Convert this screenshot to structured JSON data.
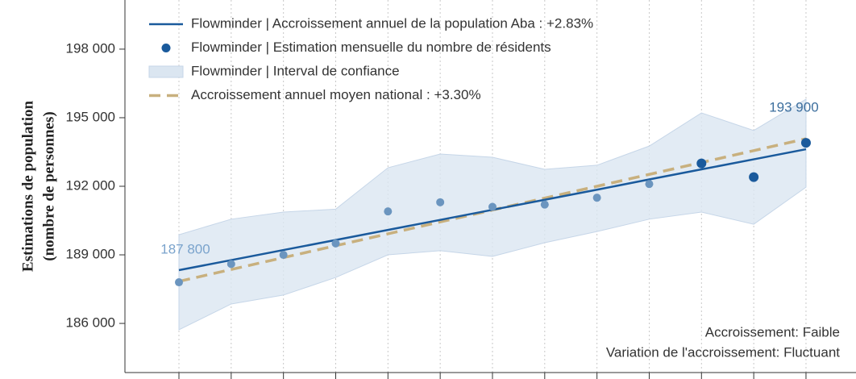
{
  "chart_data": {
    "type": "line",
    "ylabel": [
      "Estimations de population",
      "(nombre de personnes)"
    ],
    "categories": [
      null,
      null,
      null,
      null,
      null,
      null,
      null,
      null,
      null,
      null,
      null,
      null,
      null
    ],
    "ylim": [
      183850,
      200150
    ],
    "yticks": [
      {
        "value": 186000,
        "label": "186 000"
      },
      {
        "value": 189000,
        "label": "189 000"
      },
      {
        "value": 192000,
        "label": "192 000"
      },
      {
        "value": 195000,
        "label": "195 000"
      },
      {
        "value": 198000,
        "label": "198 000"
      }
    ],
    "grid": "x",
    "legend": "upper left",
    "series": [
      {
        "name": "Flowminder | Accroissement annuel de la population Aba : +2.83%",
        "kind": "line",
        "color": "#1a5a9c",
        "values": [
          188330,
          188770,
          189210,
          189650,
          190090,
          190530,
          190970,
          191410,
          191850,
          192300,
          192740,
          193180,
          193620
        ]
      },
      {
        "name": "Flowminder | Estimation mensuelle du nombre de résidents",
        "kind": "scatter",
        "color": "#1a5a9c",
        "values": [
          187800,
          188600,
          189000,
          189500,
          190900,
          191300,
          191100,
          191200,
          191500,
          192100,
          193000,
          192400,
          193900
        ],
        "point_colors": [
          "#6b95bf",
          "#6b95bf",
          "#6b95bf",
          "#6b95bf",
          "#6b95bf",
          "#6b95bf",
          "#6b95bf",
          "#6b95bf",
          "#6b95bf",
          "#6b95bf",
          "#1a5a9c",
          "#1a5a9c",
          "#1a5a9c"
        ],
        "value_labels": [
          "187 800",
          null,
          null,
          null,
          null,
          null,
          null,
          null,
          null,
          null,
          null,
          null,
          "193 900"
        ],
        "label_colors": [
          "#7aa3cc",
          null,
          null,
          null,
          null,
          null,
          null,
          null,
          null,
          null,
          null,
          null,
          "#3d6f9e"
        ]
      },
      {
        "name": "Flowminder | Interval de confiance",
        "kind": "band",
        "color": "#dbe6f1",
        "upper": [
          189880,
          190560,
          190870,
          191000,
          192810,
          193410,
          193270,
          192740,
          192920,
          193760,
          195210,
          194440,
          195810
        ],
        "lower": [
          185720,
          186850,
          187240,
          188010,
          189000,
          189180,
          188930,
          189530,
          190020,
          190560,
          190870,
          190340,
          191960
        ]
      },
      {
        "name": "Accroissement annuel moyen national : +3.30%",
        "kind": "dashed",
        "color": "#c8b07e",
        "values": [
          187840,
          188360,
          188880,
          189400,
          189920,
          190440,
          190960,
          191480,
          192000,
          192520,
          193040,
          193560,
          194080
        ]
      }
    ],
    "annotations": [
      "Accroissement: Faible",
      "Variation de l'accroissement: Fluctuant"
    ]
  }
}
